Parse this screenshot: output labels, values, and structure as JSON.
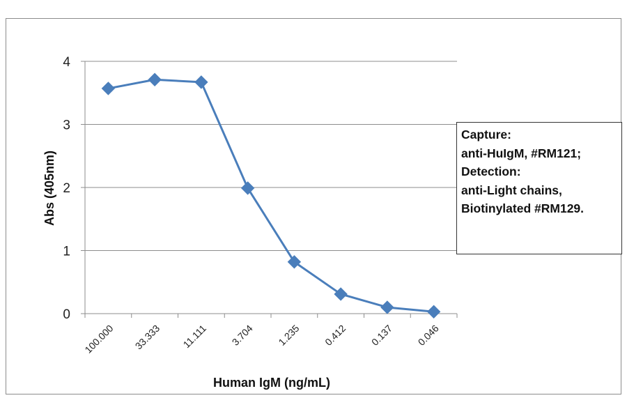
{
  "chart_data": {
    "type": "line",
    "title": "",
    "xlabel": "Human IgM (ng/mL)",
    "ylabel": "Abs (405nm)",
    "categories": [
      "100.000",
      "33.333",
      "11.111",
      "3.704",
      "1.235",
      "0.412",
      "0.137",
      "0.046"
    ],
    "series": [
      {
        "values": [
          3.57,
          3.71,
          3.67,
          1.99,
          0.82,
          0.31,
          0.1,
          0.03
        ]
      }
    ],
    "yticks": [
      "0",
      "1",
      "2",
      "3",
      "4"
    ],
    "ylim": [
      0,
      4
    ],
    "grid": "horizontal",
    "marker": "diamond",
    "series_color": "#4a7ebb",
    "annotation": [
      "Capture:",
      "anti-HuIgM, #RM121;",
      "Detection:",
      "anti-Light chains,",
      "Biotinylated #RM129."
    ]
  }
}
